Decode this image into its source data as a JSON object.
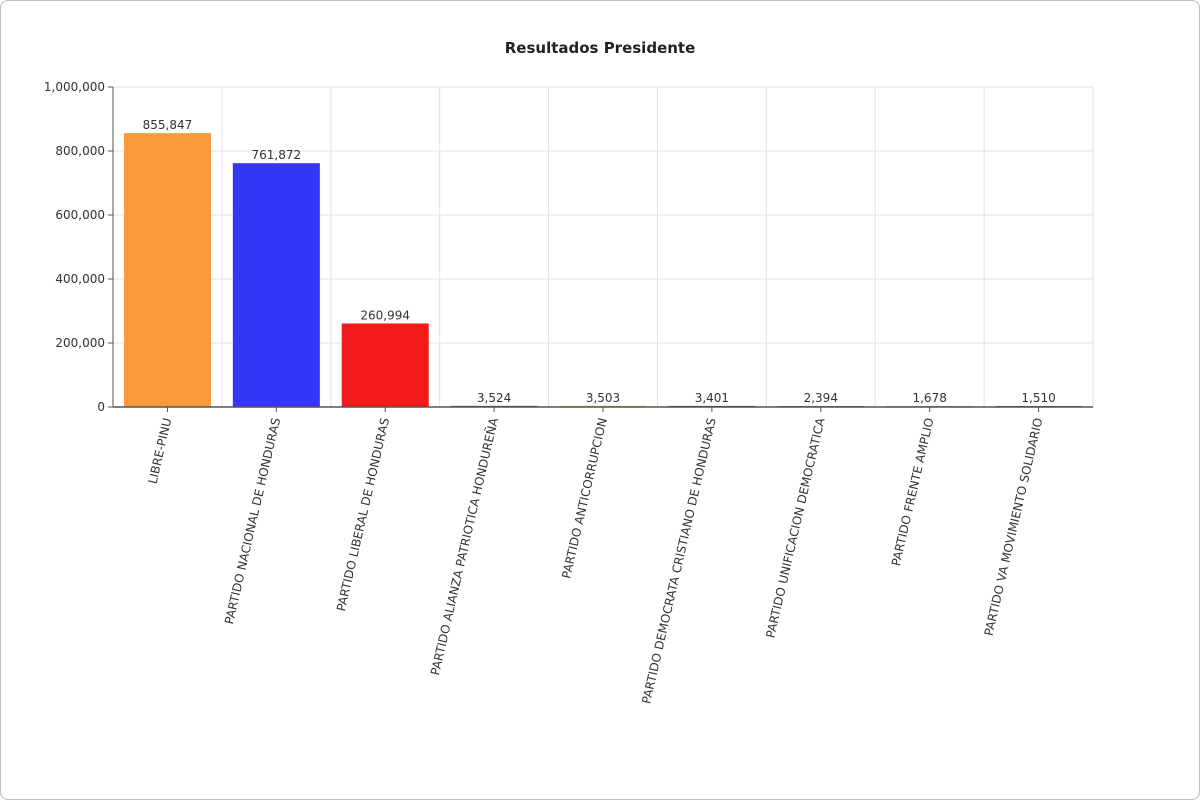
{
  "chart_data": {
    "type": "bar",
    "title": "Resultados Presidente",
    "xlabel": "",
    "ylabel": "",
    "ylim": [
      0,
      1000000
    ],
    "yticks": [
      0,
      200000,
      400000,
      600000,
      800000,
      1000000
    ],
    "ytick_labels": [
      "0",
      "200,000",
      "400,000",
      "600,000",
      "800,000",
      "1,000,000"
    ],
    "grid": true,
    "categories": [
      "LIBRE-PINU",
      "PARTIDO NACIONAL DE HONDURAS",
      "PARTIDO LIBERAL DE HONDURAS",
      "PARTIDO ALIANZA PATRIOTICA HONDUREÑA",
      "PARTIDO ANTICORRUPCION",
      "PARTIDO DEMOCRATA CRISTIANO DE HONDURAS",
      "PARTIDO UNIFICACION DEMOCRATICA",
      "PARTIDO FRENTE AMPLIO",
      "PARTIDO VA MOVIMIENTO SOLIDARIO"
    ],
    "values": [
      855847,
      761872,
      260994,
      3524,
      3503,
      3401,
      2394,
      1678,
      1510
    ],
    "value_labels": [
      "855,847",
      "761,872",
      "260,994",
      "3,524",
      "3,503",
      "3,401",
      "2,394",
      "1,678",
      "1,510"
    ],
    "colors": [
      "#f99a3c",
      "#3535f5",
      "#f21a1a",
      "#8b1a6a",
      "#c8c800",
      "#5a3a1a",
      "#6a6a6a",
      "#999999",
      "#555555"
    ]
  }
}
